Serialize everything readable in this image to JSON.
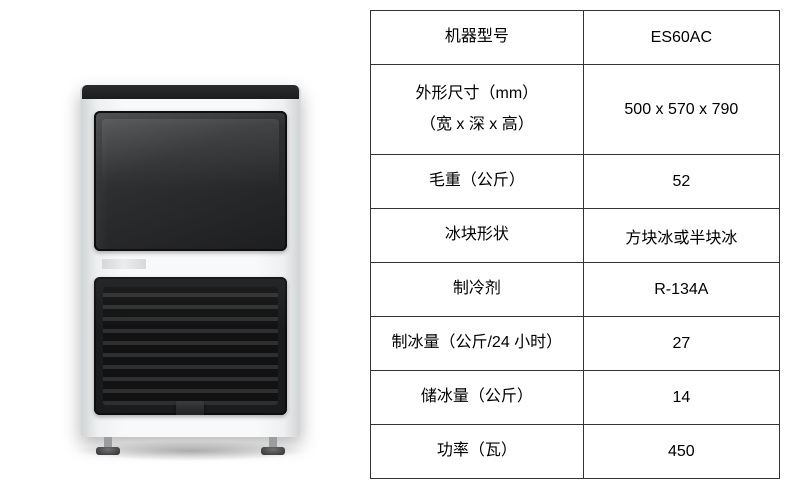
{
  "specs": {
    "rows": [
      {
        "label": "机器型号",
        "value": "ES60AC",
        "tall": false
      },
      {
        "label": "外形尺寸（mm）\n（宽 x 深 x 高）",
        "value": "500 x 570 x 790",
        "tall": true
      },
      {
        "label": "毛重（公斤）",
        "value": "52",
        "tall": false
      },
      {
        "label": "冰块形状",
        "value": "方块冰或半块冰",
        "tall": false
      },
      {
        "label": "制冷剂",
        "value": "R-134A",
        "tall": false
      },
      {
        "label": "制冰量（公斤/24 小时）",
        "value": "27",
        "tall": false
      },
      {
        "label": "储冰量（公斤）",
        "value": "14",
        "tall": false
      },
      {
        "label": "功率（瓦）",
        "value": "450",
        "tall": false
      }
    ]
  },
  "colors": {
    "border": "#333333",
    "text": "#000000",
    "background": "#ffffff"
  }
}
